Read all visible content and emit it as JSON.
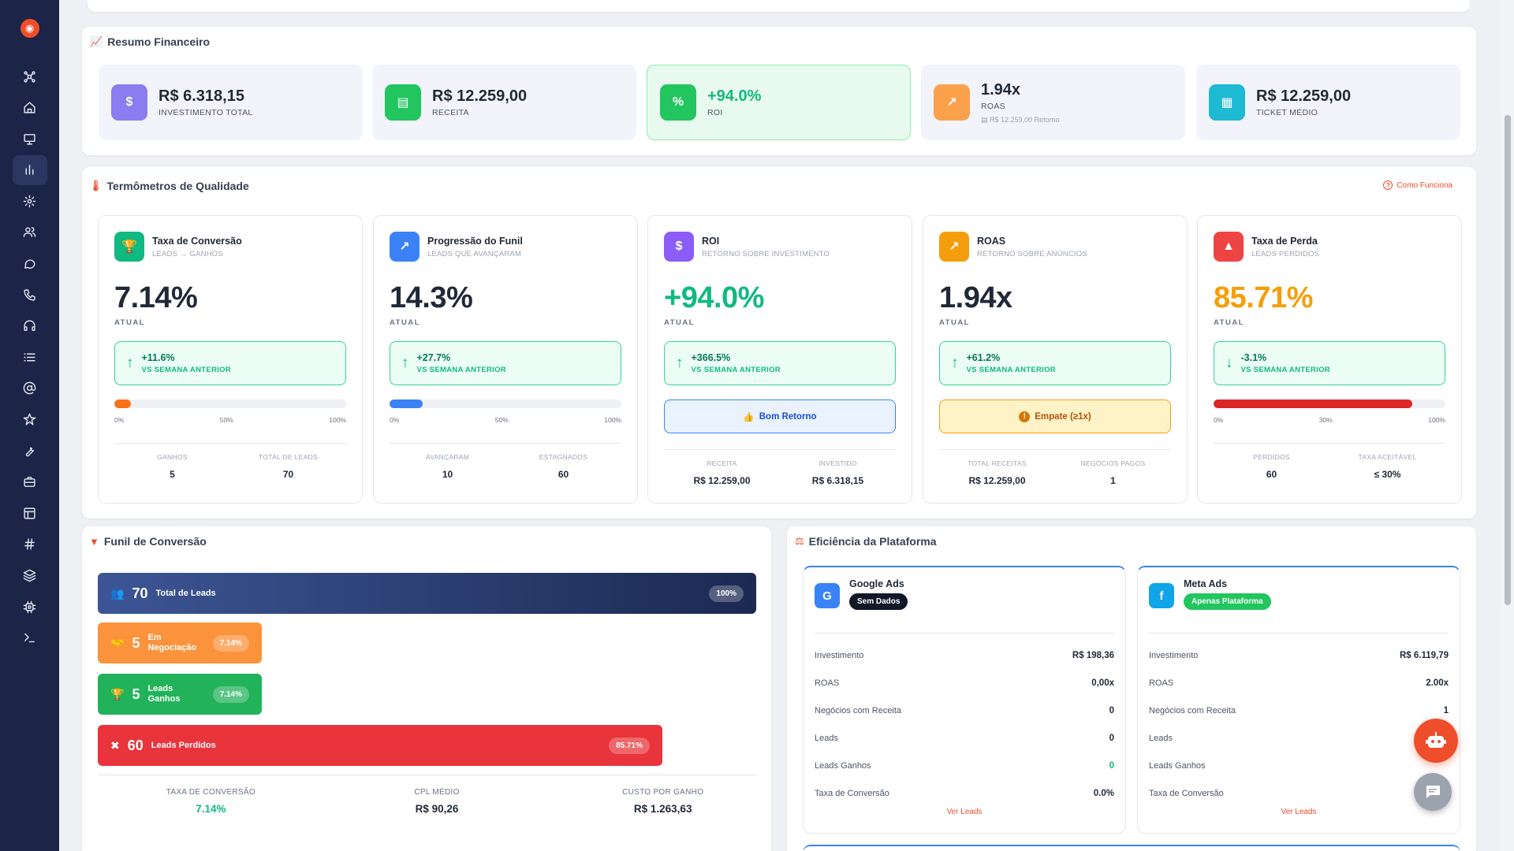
{
  "sidebar": {
    "logo": "◉",
    "items": [
      {
        "name": "network-icon"
      },
      {
        "name": "home-icon"
      },
      {
        "name": "monitor-icon"
      },
      {
        "name": "bar-chart-icon",
        "active": true
      },
      {
        "name": "gear-icon"
      },
      {
        "name": "users-icon"
      },
      {
        "name": "chat-icon"
      },
      {
        "name": "phone-icon"
      },
      {
        "name": "headset-icon"
      },
      {
        "name": "list-icon"
      },
      {
        "name": "at-sign-icon"
      },
      {
        "name": "star-icon"
      },
      {
        "name": "wrench-icon"
      },
      {
        "name": "briefcase-icon"
      },
      {
        "name": "layout-icon"
      },
      {
        "name": "hash-icon"
      },
      {
        "name": "layers-icon"
      },
      {
        "name": "chip-icon"
      },
      {
        "name": "terminal-icon"
      }
    ]
  },
  "financial": {
    "title": "Resumo Financeiro",
    "cards": [
      {
        "value": "R$ 6.318,15",
        "label": "INVESTIMENTO TOTAL",
        "icon": "$",
        "color": "#8b7cf0"
      },
      {
        "value": "R$ 12.259,00",
        "label": "RECEITA",
        "icon": "▤",
        "color": "#22c55e"
      },
      {
        "value": "+94.0%",
        "label": "ROI",
        "icon": "%",
        "color": "#22c55e"
      },
      {
        "value": "1.94x",
        "label": "ROAS",
        "sub": "R$ 12.259,00 Retorno",
        "icon": "↗",
        "color": "#fba14b"
      },
      {
        "value": "R$ 12.259,00",
        "label": "TICKET MÉDIO",
        "icon": "▦",
        "color": "#1eb9d2"
      }
    ]
  },
  "quality": {
    "title": "Termômetros de Qualidade",
    "help_link": "Como Funciona",
    "atual_label": "ATUAL",
    "cards": [
      {
        "title": "Taxa de Conversão",
        "subtitle": "LEADS → GANHOS",
        "value": "7.14%",
        "delta": "+11.6%",
        "delta_label": "VS SEMANA ANTERIOR",
        "progress": 0.0714,
        "bar_color": "#f97316",
        "scale": [
          "0%",
          "50%",
          "100%"
        ],
        "stats": [
          {
            "label": "GANHOS",
            "value": "5"
          },
          {
            "label": "TOTAL DE LEADS",
            "value": "70"
          }
        ],
        "icon": "🏆",
        "icon_color": "#10b981",
        "value_color": "#1f2937"
      },
      {
        "title": "Progressão do Funil",
        "subtitle": "LEADS QUE AVANÇARAM",
        "value": "14.3%",
        "delta": "+27.7%",
        "delta_label": "VS SEMANA ANTERIOR",
        "progress": 0.143,
        "bar_color": "#3b82f6",
        "scale": [
          "0%",
          "50%",
          "100%"
        ],
        "stats": [
          {
            "label": "AVANÇARAM",
            "value": "10"
          },
          {
            "label": "ESTAGNADOS",
            "value": "60"
          }
        ],
        "icon": "↗",
        "icon_color": "#3b82f6",
        "value_color": "#1f2937"
      },
      {
        "title": "ROI",
        "subtitle": "RETORNO SOBRE INVESTIMENTO",
        "value": "+94.0%",
        "delta": "+366.5%",
        "delta_label": "VS SEMANA ANTERIOR",
        "status": "Bom Retorno",
        "status_icon": "👍",
        "stats": [
          {
            "label": "RECEITA",
            "value": "R$ 12.259,00"
          },
          {
            "label": "INVESTIDO",
            "value": "R$ 6.318,15"
          }
        ],
        "icon": "$",
        "icon_color": "#8b5cf6",
        "value_color": "#10b981"
      },
      {
        "title": "ROAS",
        "subtitle": "RETORNO SOBRE ANÚNCIOS",
        "value": "1.94x",
        "delta": "+61.2%",
        "delta_label": "VS SEMANA ANTERIOR",
        "status": "Empate (≥1x)",
        "status_icon": "!",
        "stats": [
          {
            "label": "TOTAL RECEITAS",
            "value": "R$ 12.259,00"
          },
          {
            "label": "NEGÓCIOS PAGOS",
            "value": "1"
          }
        ],
        "icon": "↗",
        "icon_color": "#f59e0b",
        "value_color": "#1f2937"
      },
      {
        "title": "Taxa de Perda",
        "subtitle": "LEADS PERDIDOS",
        "value": "85.71%",
        "delta": "-3.1%",
        "delta_label": "VS SEMANA ANTERIOR",
        "progress": 0.8571,
        "bar_color": "#dc2626",
        "scale": [
          "0%",
          "30%",
          "100%"
        ],
        "stats": [
          {
            "label": "PERDIDOS",
            "value": "60"
          },
          {
            "label": "TAXA ACEITÁVEL",
            "value": "≤ 30%"
          }
        ],
        "icon": "▲",
        "icon_color": "#ef4444",
        "value_color": "#f59e0b"
      }
    ]
  },
  "funnel": {
    "title": "Funil de Conversão",
    "bars": [
      {
        "num": "70",
        "label": "Total de Leads",
        "pct": "100%",
        "icon": "👥",
        "ratio": 1.0,
        "color": "linear-gradient(90deg,#3c5595,#1c2a52)"
      },
      {
        "num": "5",
        "label": "Em Negociação",
        "pct": "7.14%",
        "icon": "🤝",
        "ratio": 0.0714,
        "color": "#fb923c"
      },
      {
        "num": "5",
        "label": "Leads Ganhos",
        "pct": "7.14%",
        "icon": "🏆",
        "ratio": 0.0714,
        "color": "#22b35a"
      },
      {
        "num": "60",
        "label": "Leads Perdidos",
        "pct": "85.71%",
        "icon": "✖",
        "ratio": 0.8571,
        "color": "#e8343a"
      }
    ],
    "stats": [
      {
        "label": "TAXA DE CONVERSÃO",
        "value": "7.14%",
        "color": "#10b981"
      },
      {
        "label": "CPL MÉDIO",
        "value": "R$ 90,26",
        "color": "#1f2937"
      },
      {
        "label": "CUSTO POR GANHO",
        "value": "R$ 1.263,63",
        "color": "#1f2937"
      }
    ]
  },
  "platform": {
    "title": "Eficiência da Plataforma",
    "cards": [
      {
        "name": "Google Ads",
        "badge": "Sem Dados",
        "badge_color": "#111827",
        "icon": "G",
        "icon_color": "#3b82f6",
        "rows": [
          {
            "label": "Investimento",
            "value": "R$ 198,36"
          },
          {
            "label": "ROAS",
            "value": "0,00x"
          },
          {
            "label": "Negócios com Receita",
            "value": "0"
          },
          {
            "label": "Leads",
            "value": "0"
          },
          {
            "label": "Leads Ganhos",
            "value": "0",
            "color": "#10b981"
          },
          {
            "label": "Taxa de Conversão",
            "value": "0.0%"
          }
        ],
        "link": "Ver Leads"
      },
      {
        "name": "Meta Ads",
        "badge": "Apenas Plataforma",
        "badge_color": "#22c55e",
        "icon": "f",
        "icon_color": "#0ea5e9",
        "rows": [
          {
            "label": "Investimento",
            "value": "R$ 6.119,79"
          },
          {
            "label": "ROAS",
            "value": "2.00x"
          },
          {
            "label": "Negócios com Receita",
            "value": "1"
          },
          {
            "label": "Leads",
            "value": ""
          },
          {
            "label": "Leads Ganhos",
            "value": ""
          },
          {
            "label": "Taxa de Conversão",
            "value": ""
          }
        ],
        "link": "Ver Leads"
      }
    ]
  }
}
